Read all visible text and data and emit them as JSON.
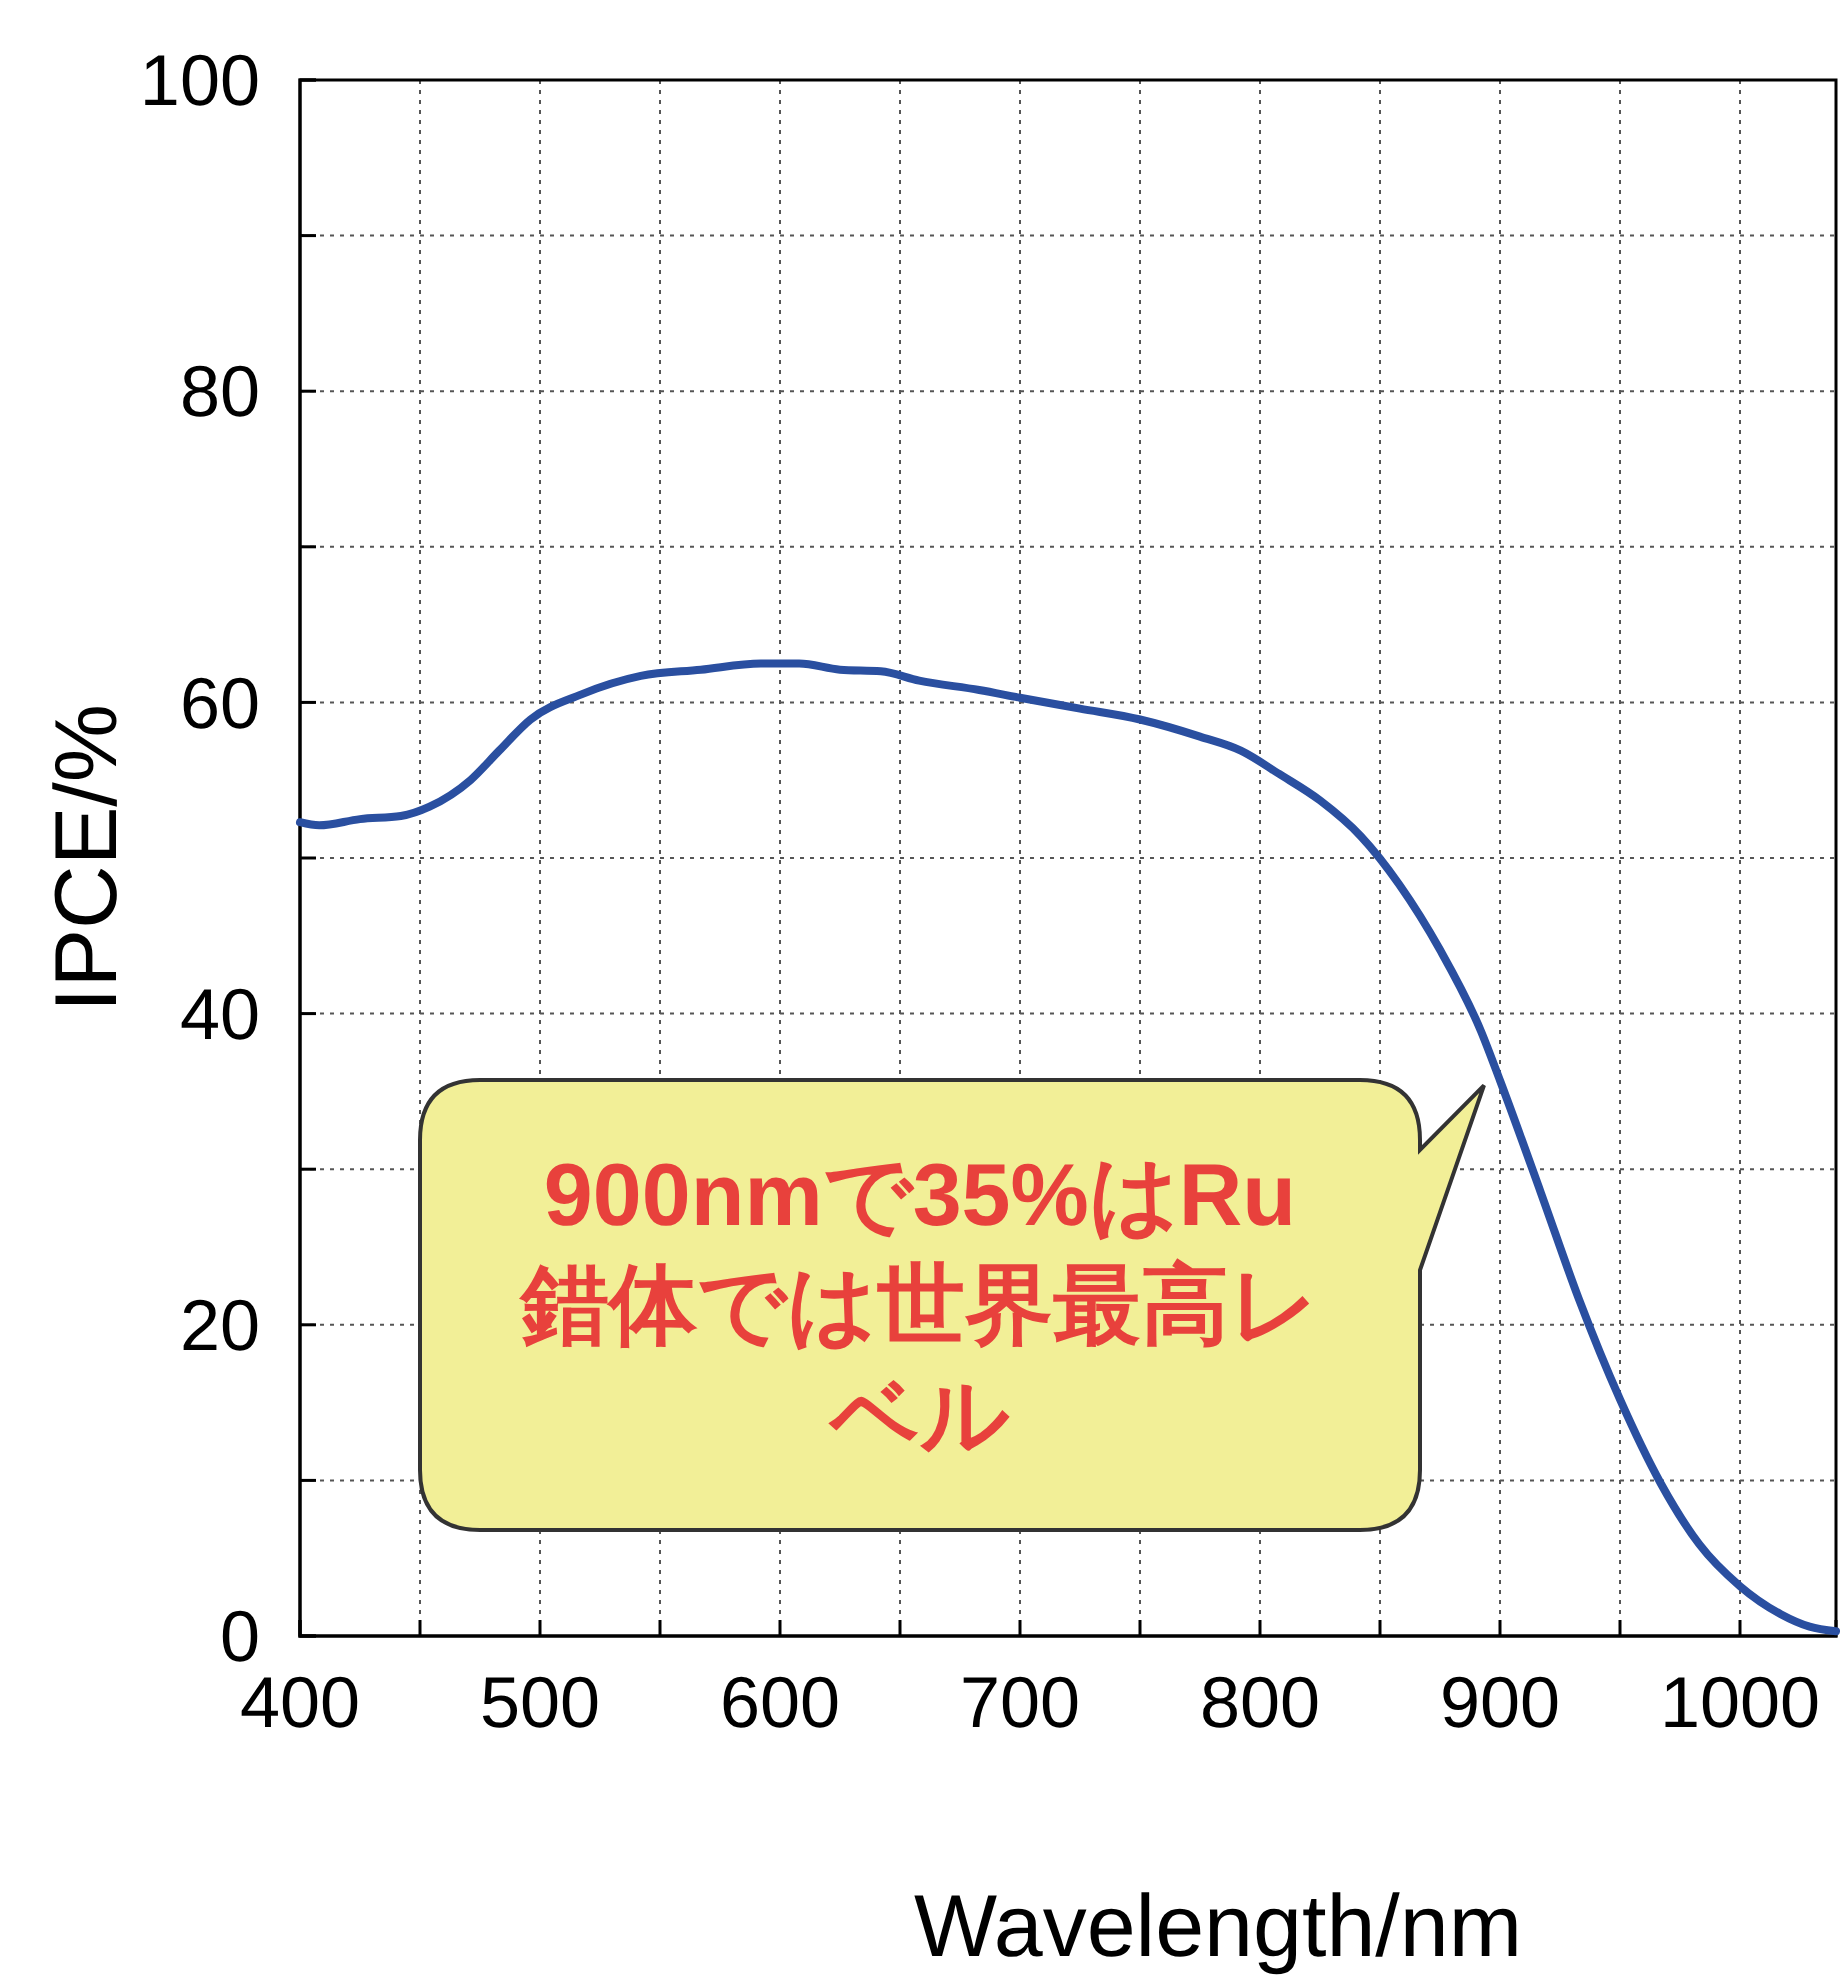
{
  "chart_data": {
    "type": "line",
    "xlabel": "Wavelength/nm",
    "ylabel": "IPCE/%",
    "x": [
      400,
      408,
      425,
      442,
      454,
      471,
      483,
      496,
      517,
      542,
      567,
      592,
      608,
      625,
      642,
      658,
      683,
      700,
      725,
      750,
      775,
      792,
      808,
      825,
      842,
      858,
      875,
      892,
      900,
      917,
      933,
      950,
      967,
      983,
      1000,
      1017,
      1029,
      1040
    ],
    "series": [
      {
        "color": "#2a4fa0",
        "values": [
          52.3,
          52.1,
          52.5,
          52.7,
          53.3,
          55.0,
          56.9,
          58.9,
          60.5,
          61.7,
          62.1,
          62.5,
          62.5,
          62.1,
          62.0,
          61.4,
          60.8,
          60.3,
          59.6,
          58.9,
          57.8,
          56.9,
          55.4,
          53.7,
          51.4,
          48.3,
          44.1,
          38.9,
          35.7,
          28.5,
          21.6,
          15.2,
          9.8,
          5.9,
          3.2,
          1.4,
          0.6,
          0.3
        ]
      }
    ],
    "xlim": [
      400,
      1040
    ],
    "xticks": [
      400,
      {
        "value": 450,
        "label": null
      },
      500,
      {
        "value": 550,
        "label": null
      },
      600,
      {
        "value": 650,
        "label": null
      },
      700,
      {
        "value": 750,
        "label": null
      },
      800,
      {
        "value": 850,
        "label": null
      },
      900,
      {
        "value": 950,
        "label": null
      },
      1000
    ],
    "ylim": [
      0,
      100
    ],
    "yticks": [
      0,
      {
        "value": 10,
        "label": null
      },
      20,
      {
        "value": 30,
        "label": null
      },
      40,
      {
        "value": 50,
        "label": null
      },
      60,
      {
        "value": 70,
        "label": null
      },
      80,
      {
        "value": 90,
        "label": null
      },
      100
    ],
    "grid": true,
    "line_style": "solid",
    "marker": "none",
    "annotations": [
      {
        "text": "900nmで35%はRu錯体では世界最高レベル",
        "x": 900,
        "y": 35
      }
    ]
  }
}
